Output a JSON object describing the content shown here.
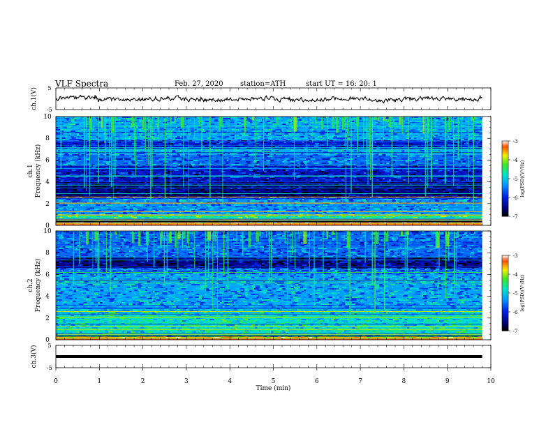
{
  "header": {
    "title": "VLF  Spectra",
    "date": "Feb. 27, 2020",
    "station": "station=ATH",
    "start": "start  UT  =    16: 20: 1"
  },
  "chart_data": [
    {
      "type": "line",
      "id": "ch1-waveform",
      "ylabel": "ch.1(V)",
      "ylim": [
        -5,
        5
      ],
      "yticks": [
        "5",
        "-5"
      ],
      "x_range": [
        0,
        10
      ],
      "trace_range_min": [
        0,
        9.8
      ],
      "baseline_v": 0,
      "description_values": {
        "approx_amplitude_v": 1.0
      }
    },
    {
      "type": "heatmap",
      "id": "ch1-spectrogram",
      "ylabel": "ch.1\nFrequency (kHz)",
      "ylabel_lines": [
        "ch.1",
        "Frequency  (kHz)"
      ],
      "ylim": [
        0,
        10
      ],
      "yticks": [
        "10",
        "8",
        "6",
        "4",
        "2",
        "0"
      ],
      "x_range_min": [
        0,
        9.8
      ],
      "colorbar": {
        "label": "log(PSD)(V²/Hz)",
        "ticks": [
          "-3",
          "-4",
          "-5",
          "-6",
          "-7"
        ],
        "range": [
          -7,
          -3
        ]
      },
      "bands_khz": [
        {
          "from": 0,
          "to": 0.3,
          "level": -3.4
        },
        {
          "from": 0.3,
          "to": 1.0,
          "level": -4.6
        },
        {
          "from": 1.0,
          "to": 2.5,
          "level": -5.4
        },
        {
          "from": 2.5,
          "to": 4.0,
          "level": -6.6
        },
        {
          "from": 4.0,
          "to": 5.5,
          "level": -6.2
        },
        {
          "from": 5.5,
          "to": 6.5,
          "level": -5.6
        },
        {
          "from": 6.5,
          "to": 7.0,
          "level": -5.2
        },
        {
          "from": 7.0,
          "to": 7.8,
          "level": -6.1
        },
        {
          "from": 7.8,
          "to": 10,
          "level": -5.3
        }
      ]
    },
    {
      "type": "heatmap",
      "id": "ch2-spectrogram",
      "ylabel": "ch.2\nFrequency (kHz)",
      "ylabel_lines": [
        "ch.2",
        "Frequency  (kHz)"
      ],
      "ylim": [
        0,
        10
      ],
      "yticks": [
        "10",
        "8",
        "6",
        "4",
        "2",
        "0"
      ],
      "x_range_min": [
        0,
        9.8
      ],
      "colorbar": {
        "label": "log(PSD)(V²/Hz)",
        "ticks": [
          "-3",
          "-4",
          "-5",
          "-6",
          "-7"
        ],
        "range": [
          -7,
          -3
        ]
      },
      "bands_khz": [
        {
          "from": 0,
          "to": 0.3,
          "level": -3.6
        },
        {
          "from": 0.3,
          "to": 2.5,
          "level": -4.9
        },
        {
          "from": 2.5,
          "to": 6.0,
          "level": -5.3
        },
        {
          "from": 6.0,
          "to": 6.6,
          "level": -5.6
        },
        {
          "from": 6.6,
          "to": 7.6,
          "level": -6.5
        },
        {
          "from": 7.6,
          "to": 10,
          "level": -5.6
        }
      ]
    },
    {
      "type": "line",
      "id": "ch3-waveform",
      "ylabel": "ch.3(V)",
      "ylim": [
        -5,
        5
      ],
      "yticks": [
        "5",
        "-5"
      ],
      "x_range": [
        0,
        10
      ],
      "trace_range_min": [
        0,
        9.8
      ],
      "constant_v": 0
    }
  ],
  "x_axis": {
    "label": "Time  (min)",
    "ticks": [
      "0",
      "1",
      "2",
      "3",
      "4",
      "5",
      "6",
      "7",
      "8",
      "9",
      "10"
    ]
  }
}
